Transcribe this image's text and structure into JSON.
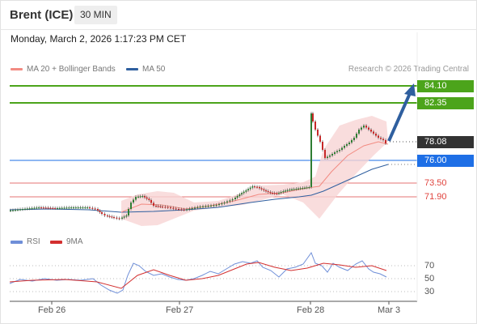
{
  "header": {
    "instrument": "Brent (ICE)",
    "timeframe": "30 MIN"
  },
  "datetime": "Monday, March 2, 2026 1:17:23 PM CET",
  "legend": {
    "ma20": {
      "label": "MA 20 + Bollinger Bands",
      "color": "#f28b82"
    },
    "ma50": {
      "label": "MA 50",
      "color": "#2f5f9f"
    }
  },
  "research": "Research © 2026 Trading Central",
  "price_levels": {
    "target2": "84.10",
    "target1": "82.35",
    "current": "78.08",
    "pivot": "76.00",
    "support1": "73.50",
    "support2": "71.90"
  },
  "rsi_panel": {
    "legend_rsi": "RSI",
    "legend_ma": "9MA",
    "level_70": "70",
    "level_50": "50",
    "level_30": "30"
  },
  "x_axis": [
    "Feb 26",
    "Feb 27",
    "Feb 28",
    "Mar 3"
  ],
  "colors": {
    "resistance": "#4ca41b",
    "pivot": "#1e6fe6",
    "support": "#e57373",
    "current": "#333333",
    "arrow": "#2f5f9f",
    "bull_candle": "#2e7d32",
    "bear_candle": "#c62828"
  }
}
